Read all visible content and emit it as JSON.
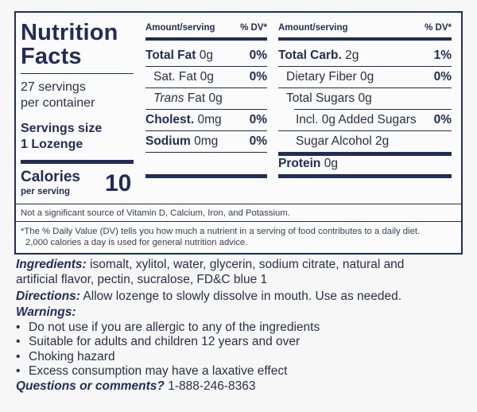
{
  "label": {
    "title_line1": "Nutrition",
    "title_line2": "Facts",
    "servings_per_container_line1": "27 servings",
    "servings_per_container_line2": "per container",
    "serving_size_label": "Servings size",
    "serving_size_value": "1 Lozenge",
    "calories_label": "Calories",
    "calories_sub": "per serving",
    "calories_value": "10",
    "col_header_left": "Amount/serving",
    "col_header_dv": "% DV*",
    "left_rows": [
      {
        "bold": "Total Fat",
        "rest": " 0g",
        "pct": "0%"
      },
      {
        "bold": "",
        "rest": "Sat. Fat 0g",
        "pct": "0%"
      },
      {
        "italic": "Trans",
        "rest": " Fat 0g",
        "pct": ""
      },
      {
        "bold": "Cholest.",
        "rest": " 0mg",
        "pct": "0%"
      },
      {
        "bold": "Sodium",
        "rest": " 0mg",
        "pct": "0%"
      }
    ],
    "right_rows": [
      {
        "bold": "Total Carb.",
        "rest": " 2g",
        "pct": "1%"
      },
      {
        "bold": "",
        "rest": "Dietary Fiber 0g",
        "pct": "0%"
      },
      {
        "bold": "",
        "rest": "Total Sugars 0g",
        "pct": ""
      },
      {
        "bold": "",
        "rest": "Incl. 0g Added Sugars",
        "pct": "0%"
      },
      {
        "bold": "",
        "rest": "Sugar Alcohol 2g",
        "pct": ""
      },
      {
        "bold": "Protein",
        "rest": " 0g",
        "pct": ""
      }
    ],
    "not_significant": "Not a significant source of Vitamin D, Calcium, Iron, and Potassium.",
    "footnote_line1": "*The % Daily Value (DV) tells you how much a nutrient in a serving of food contributes to a daily diet.",
    "footnote_line2": "2,000 calories a day is used for general nutrition advice."
  },
  "ingredients": {
    "label": "Ingredients:",
    "text_line1": " isomalt, xylitol, water, glycerin, sodium citrate, natural and",
    "text_line2": "artificial flavor, pectin, sucralose, FD&C blue 1"
  },
  "directions": {
    "label": "Directions:",
    "text": " Allow lozenge to slowly dissolve in mouth. Use as needed."
  },
  "warnings": {
    "label": "Warnings:",
    "items": [
      "Do not use if you are allergic to any of the ingredients",
      "Suitable for adults and children 12 years and over",
      "Choking hazard",
      "Excess consumption may have a laxative effect"
    ]
  },
  "questions": {
    "label": "Questions or comments?",
    "phone": " 1-888-246-8363"
  }
}
